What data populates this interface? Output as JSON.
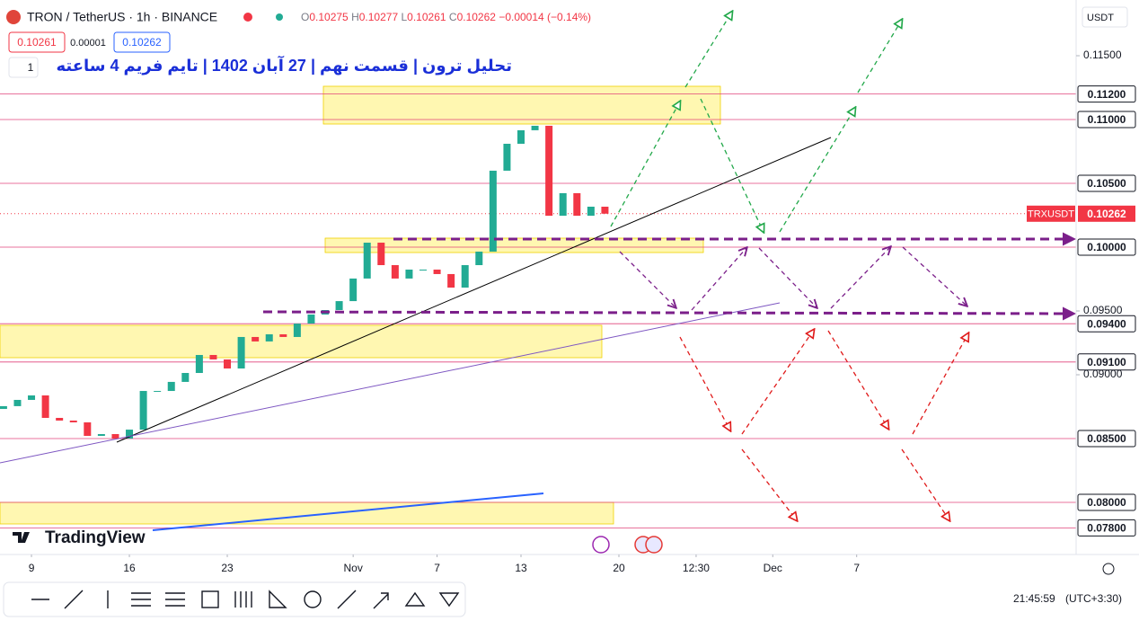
{
  "header": {
    "symbol": "TRON / TetherUS · 1h · BINANCE",
    "ohlc": [
      {
        "key": "O",
        "value": "0.10275"
      },
      {
        "key": "H",
        "value": "0.10277"
      },
      {
        "key": "L",
        "value": "0.10261"
      },
      {
        "key": "C",
        "value": "0.10262"
      }
    ],
    "change": "−0.00014 (−0.14%)",
    "bid": "0.10261",
    "spread": "0.00001",
    "ask": "0.10262",
    "indicators": "1",
    "currency": "USDT"
  },
  "footer": {
    "brand": "TradingView",
    "time": "21:45:59",
    "timezone": "(UTC+3:30)"
  },
  "chart_data": {
    "type": "candlestick",
    "title": "تحلیل ترون | قسمت نهم | 27 آبان 1402 | تایم فریم 4 ساعته",
    "series": [
      {
        "name": "TRXUSDT",
        "up_color": "#22ab94",
        "down_color": "#f23645",
        "x": [
          6.75,
          7,
          8,
          9,
          10,
          11,
          12,
          13,
          14,
          15,
          16,
          17,
          18,
          19,
          20,
          21,
          22,
          23,
          24,
          25,
          26,
          27,
          28,
          29,
          30,
          31,
          32,
          33,
          34,
          35,
          36,
          37,
          38,
          39,
          40,
          41,
          42,
          43,
          44,
          45,
          46,
          47,
          48,
          49,
          50
        ],
        "values": [
          0.08732,
          0.08754,
          0.08803,
          0.08838,
          0.08662,
          0.08641,
          0.08627,
          0.08521,
          0.08535,
          0.085,
          0.0857,
          0.08873,
          0.08873,
          0.08944,
          0.09014,
          0.09155,
          0.0912,
          0.09049,
          0.09296,
          0.09261,
          0.09317,
          0.09296,
          0.09401,
          0.09472,
          0.09507,
          0.09577,
          0.09754,
          0.10035,
          0.09859,
          0.09754,
          0.09824,
          0.09824,
          0.09789,
          0.09683,
          0.09859,
          0.09965,
          0.10599,
          0.1081,
          0.10916,
          0.10951,
          0.10246,
          0.10423,
          0.10246,
          0.10317,
          0.10262
        ]
      }
    ],
    "last_price": {
      "name": "TRXUSDT",
      "value": 0.10262,
      "label": "0.10262",
      "color": "#f23645"
    },
    "levels": [
      {
        "value": 0.112,
        "label": "0.11200"
      },
      {
        "value": 0.11,
        "label": "0.11000"
      },
      {
        "value": 0.105,
        "label": "0.10500"
      },
      {
        "value": 0.1,
        "label": "0.10000"
      },
      {
        "value": 0.094,
        "label": "0.09400"
      },
      {
        "value": 0.091,
        "label": "0.09100"
      },
      {
        "value": 0.085,
        "label": "0.08500"
      },
      {
        "value": 0.08,
        "label": "0.08000"
      },
      {
        "value": 0.078,
        "label": "0.07800"
      }
    ],
    "level_color": "#e0457b",
    "xlim": [
      6.75,
      83.69
    ],
    "xticks": [
      9,
      16,
      23,
      {
        "value": 32,
        "label": "Nov"
      },
      {
        "value": 38,
        "label": "7"
      },
      {
        "value": 44,
        "label": "13"
      },
      {
        "value": 51,
        "label": "20"
      },
      {
        "value": 56.52,
        "label": "12:30"
      },
      {
        "value": 62,
        "label": "Dec"
      },
      {
        "value": 68,
        "label": "7"
      }
    ],
    "ylim": [
      0.075915,
      0.119366
    ],
    "yticks": [
      {
        "value": 0.115,
        "label": "0.11500"
      },
      {
        "value": 0.095,
        "label": "0.09500"
      },
      {
        "value": 0.09,
        "label": "0.09000"
      }
    ],
    "grid": false
  }
}
